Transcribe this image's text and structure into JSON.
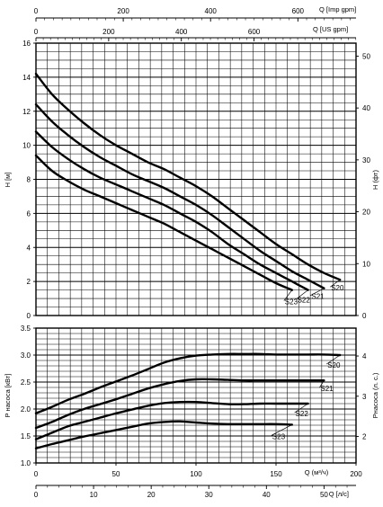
{
  "chart_data": [
    {
      "type": "line",
      "xlabel": "Q (м³/ч)",
      "ylabel": "H [м]",
      "y2label": "H (фт)",
      "xlim": [
        0,
        200
      ],
      "ylim": [
        0,
        16
      ],
      "y2lim": [
        0,
        52.5
      ],
      "grid": true,
      "y_ticks": [
        "0",
        "2",
        "4",
        "6",
        "8",
        "10",
        "12",
        "14",
        "16"
      ],
      "y2_ticks": [
        "0",
        "10",
        "20",
        "30",
        "40",
        "50"
      ],
      "top_axes": [
        {
          "label": "Q [Imp gpm]",
          "ticks": [
            "0",
            "200",
            "400",
            "600"
          ]
        },
        {
          "label": "Q [US gpm]",
          "ticks": [
            "0",
            "200",
            "400",
            "600"
          ]
        }
      ],
      "series": [
        {
          "name": "S20",
          "x": [
            0,
            10,
            20,
            30,
            40,
            50,
            60,
            70,
            80,
            90,
            100,
            110,
            120,
            130,
            140,
            150,
            160,
            170,
            180,
            190
          ],
          "y": [
            14.2,
            13.0,
            12.1,
            11.3,
            10.6,
            10.0,
            9.5,
            9.0,
            8.6,
            8.1,
            7.6,
            7.0,
            6.3,
            5.6,
            4.9,
            4.2,
            3.6,
            3.0,
            2.5,
            2.1
          ]
        },
        {
          "name": "S21",
          "x": [
            0,
            10,
            20,
            30,
            40,
            50,
            60,
            70,
            80,
            90,
            100,
            110,
            120,
            130,
            140,
            150,
            160,
            170,
            180
          ],
          "y": [
            12.4,
            11.4,
            10.6,
            9.9,
            9.3,
            8.8,
            8.3,
            7.9,
            7.5,
            7.0,
            6.5,
            5.9,
            5.2,
            4.5,
            3.8,
            3.2,
            2.6,
            2.1,
            1.6
          ]
        },
        {
          "name": "S22",
          "x": [
            0,
            10,
            20,
            30,
            40,
            50,
            60,
            70,
            80,
            90,
            100,
            110,
            120,
            130,
            140,
            150,
            160,
            170
          ],
          "y": [
            10.8,
            9.9,
            9.2,
            8.6,
            8.1,
            7.7,
            7.3,
            6.9,
            6.5,
            6.0,
            5.5,
            4.9,
            4.2,
            3.6,
            3.0,
            2.5,
            2.0,
            1.5
          ]
        },
        {
          "name": "S23",
          "x": [
            0,
            10,
            20,
            30,
            40,
            50,
            60,
            70,
            80,
            90,
            100,
            110,
            120,
            130,
            140,
            150,
            160
          ],
          "y": [
            9.4,
            8.5,
            7.9,
            7.4,
            7.0,
            6.6,
            6.2,
            5.8,
            5.4,
            4.9,
            4.4,
            3.9,
            3.4,
            2.9,
            2.4,
            1.9,
            1.5
          ]
        }
      ]
    },
    {
      "type": "line",
      "xlabel": "Q (м³/ч)",
      "ylabel": "P насоса [кВт]",
      "y2label": "Pнасоса (л. с.)",
      "xlim": [
        0,
        200
      ],
      "ylim": [
        1.0,
        3.5
      ],
      "grid": true,
      "x_ticks": [
        "0",
        "50",
        "100",
        "150",
        "200"
      ],
      "y_ticks": [
        "1.0",
        "1.5",
        "2.0",
        "2.5",
        "3.0",
        "3.5"
      ],
      "y2_ticks": [
        "2",
        "3",
        "4"
      ],
      "bottom_axis": {
        "label": "Q [л/с]",
        "ticks": [
          "0",
          "10",
          "20",
          "30",
          "40",
          "50"
        ]
      },
      "series": [
        {
          "name": "S20",
          "x": [
            0,
            10,
            20,
            30,
            40,
            50,
            60,
            70,
            80,
            90,
            100,
            110,
            120,
            130,
            140,
            150,
            160,
            170,
            180,
            190
          ],
          "y": [
            1.92,
            2.04,
            2.17,
            2.28,
            2.4,
            2.51,
            2.62,
            2.74,
            2.86,
            2.94,
            2.99,
            3.01,
            3.02,
            3.02,
            3.02,
            3.01,
            3.01,
            3.01,
            3.01,
            3.0
          ]
        },
        {
          "name": "S21",
          "x": [
            0,
            10,
            20,
            30,
            40,
            50,
            60,
            70,
            80,
            90,
            100,
            110,
            120,
            130,
            140,
            150,
            160,
            170,
            180
          ],
          "y": [
            1.65,
            1.76,
            1.89,
            2.0,
            2.09,
            2.18,
            2.28,
            2.38,
            2.46,
            2.52,
            2.55,
            2.55,
            2.54,
            2.53,
            2.53,
            2.53,
            2.53,
            2.53,
            2.53
          ]
        },
        {
          "name": "S22",
          "x": [
            0,
            10,
            20,
            30,
            40,
            50,
            60,
            70,
            80,
            90,
            100,
            110,
            120,
            130,
            140,
            150,
            160,
            170
          ],
          "y": [
            1.44,
            1.56,
            1.68,
            1.76,
            1.84,
            1.92,
            1.99,
            2.06,
            2.11,
            2.13,
            2.13,
            2.11,
            2.09,
            2.09,
            2.1,
            2.1,
            2.1,
            2.1
          ]
        },
        {
          "name": "S23",
          "x": [
            0,
            10,
            20,
            30,
            40,
            50,
            60,
            70,
            80,
            90,
            100,
            110,
            120,
            130,
            140,
            150,
            160
          ],
          "y": [
            1.27,
            1.35,
            1.42,
            1.49,
            1.55,
            1.61,
            1.67,
            1.73,
            1.76,
            1.77,
            1.75,
            1.73,
            1.72,
            1.72,
            1.72,
            1.72,
            1.71
          ]
        }
      ]
    }
  ]
}
